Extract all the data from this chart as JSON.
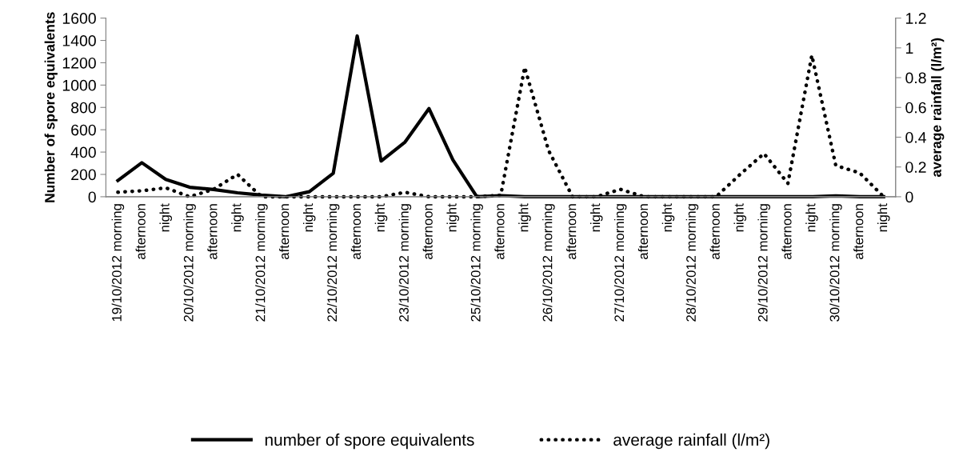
{
  "chart_data": {
    "type": "line",
    "categories": [
      "19/10/2012 morning",
      "afternoon",
      "night",
      "20/10/2012 morning",
      "afternoon",
      "night",
      "21/10/2012 morning",
      "afternoon",
      "night",
      "22/10/2012 morning",
      "afternoon",
      "night",
      "23/10/2012 morning",
      "afternoon",
      "night",
      "25/10/2012 morning",
      "afternoon",
      "night",
      "26/10/2012 morning",
      "afternoon",
      "night",
      "27/10/2012 morning",
      "afternoon",
      "night",
      "28/10/2012 morning",
      "afternoon",
      "night",
      "29/10/2012 morning",
      "afternoon",
      "night",
      "30/10/2012 morning",
      "afternoon",
      "night"
    ],
    "series": [
      {
        "name": "number of spore equivalents",
        "color": "#000000",
        "line_style": "solid",
        "values": [
          145,
          305,
          155,
          85,
          65,
          35,
          15,
          0,
          45,
          210,
          1440,
          320,
          490,
          790,
          330,
          0,
          10,
          0,
          0,
          0,
          0,
          0,
          0,
          0,
          0,
          0,
          0,
          0,
          0,
          0,
          8,
          0,
          0
        ]
      },
      {
        "name": "average rainfall (l/m²)",
        "color": "#000000",
        "line_style": "dotted",
        "axis": "y2",
        "values": [
          0.03,
          0.04,
          0.06,
          0,
          0.05,
          0.15,
          0,
          0,
          0,
          0,
          0,
          0,
          0.03,
          0,
          0,
          0,
          0.01,
          0.87,
          0.31,
          0,
          0,
          0.05,
          0,
          0,
          0,
          0,
          0.15,
          0.29,
          0.09,
          0.95,
          0.21,
          0.16,
          0
        ]
      }
    ],
    "ylabel": "Number of spore equivalents",
    "y2label": "average rainfall (l/m²)",
    "ylim": [
      0,
      1600
    ],
    "yticks": [
      0,
      200,
      400,
      600,
      800,
      1000,
      1200,
      1400,
      1600
    ],
    "y2lim": [
      0,
      1.2
    ],
    "y2ticks": [
      0,
      0.2,
      0.4,
      0.6,
      0.8,
      1,
      1.2
    ],
    "grid": false,
    "legend": "bottom",
    "marker": "none"
  }
}
